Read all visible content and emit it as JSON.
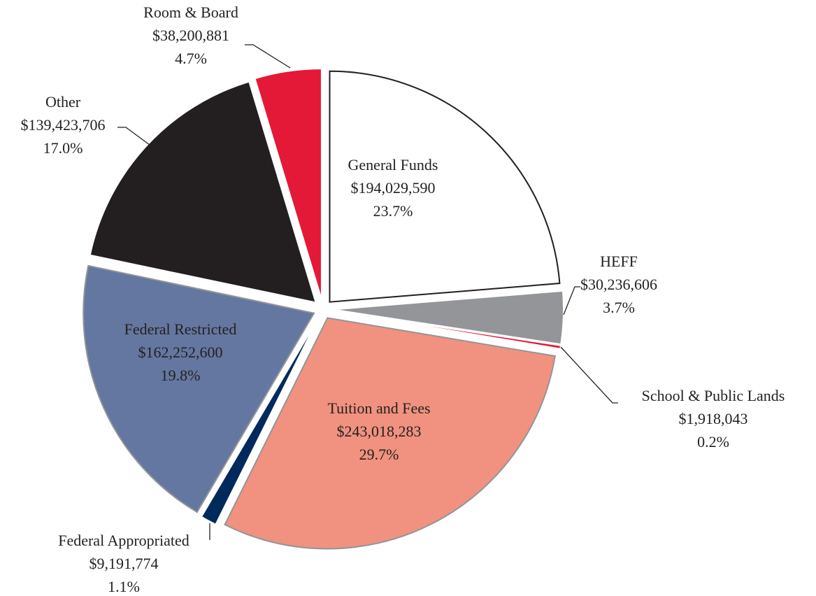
{
  "chart_data": {
    "type": "pie",
    "categories": [
      "General Funds",
      "HEFF",
      "School & Public Lands",
      "Tuition and Fees",
      "Federal Appropriated",
      "Federal Restricted",
      "Other",
      "Room & Board"
    ],
    "values": [
      194029590,
      30236606,
      1918043,
      243018283,
      9191774,
      162252600,
      139423706,
      38200881
    ],
    "value_labels": [
      "$194,029,590",
      "$30,236,606",
      "$1,918,043",
      "$243,018,283",
      "$9,191,774",
      "$162,252,600",
      "$139,423,706",
      "$38,200,881"
    ],
    "percents": [
      23.7,
      3.7,
      0.2,
      29.7,
      1.1,
      19.8,
      17.0,
      4.7
    ],
    "percent_labels": [
      "23.7%",
      "3.7%",
      "0.2%",
      "29.7%",
      "1.1%",
      "19.8%",
      "17.0%",
      "4.7%"
    ],
    "colors": [
      "#ffffff",
      "#939598",
      "#e31937",
      "#f0927f",
      "#002a5c",
      "#6477a0",
      "#231f20",
      "#e31937"
    ]
  }
}
